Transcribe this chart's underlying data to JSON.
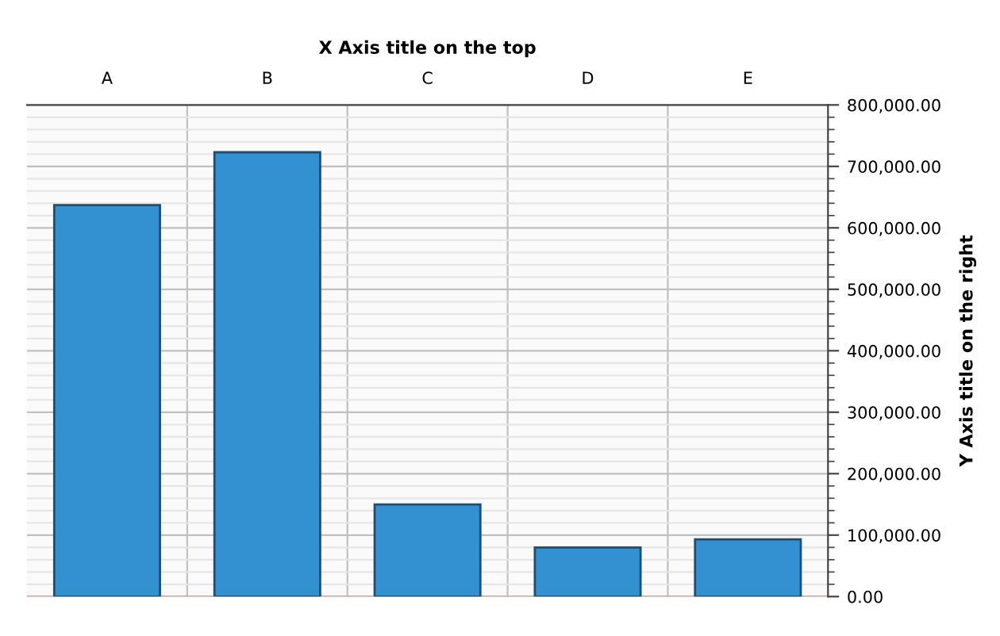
{
  "chart_data": {
    "type": "bar",
    "xlabel": "X Axis title on the top",
    "ylabel": "Y Axis title on the right",
    "categories": [
      "A",
      "B",
      "C",
      "D",
      "E"
    ],
    "values": [
      637000,
      723000,
      150000,
      80000,
      93000
    ],
    "color": "#3391d2",
    "ylim": [
      0,
      800000
    ],
    "yticks": [
      {
        "value": 0,
        "label": "0.00"
      },
      {
        "value": 100000,
        "label": "100,000.00"
      },
      {
        "value": 200000,
        "label": "200,000.00"
      },
      {
        "value": 300000,
        "label": "300,000.00"
      },
      {
        "value": 400000,
        "label": "400,000.00"
      },
      {
        "value": 500000,
        "label": "500,000.00"
      },
      {
        "value": 600000,
        "label": "600,000.00"
      },
      {
        "value": 700000,
        "label": "700,000.00"
      },
      {
        "value": 800000,
        "label": "800,000.00"
      }
    ],
    "grid": true,
    "legend": false
  }
}
